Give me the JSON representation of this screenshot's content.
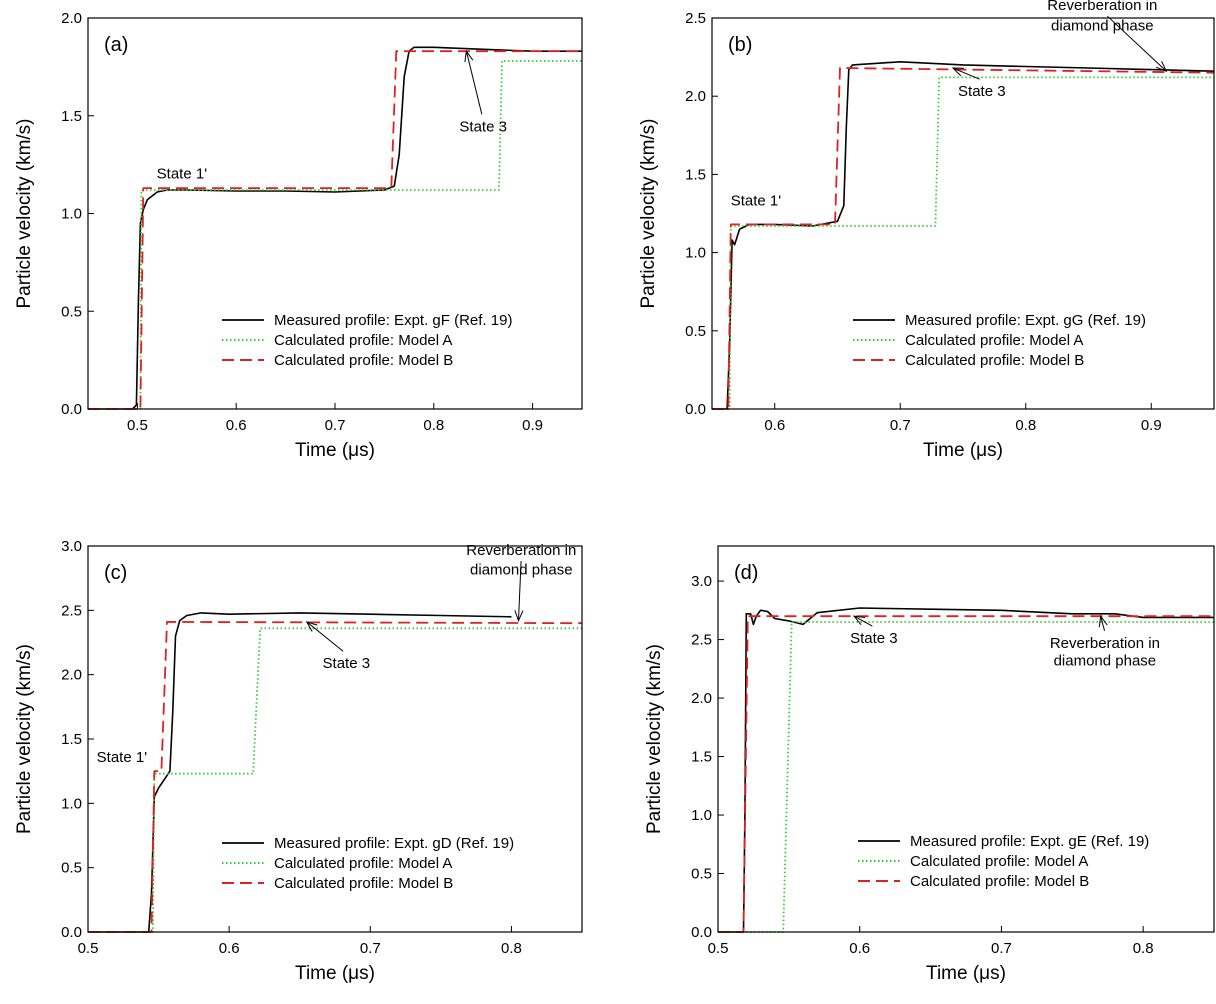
{
  "chart_data": [
    {
      "type": "line",
      "panel_label": "(a)",
      "xlabel": "Time (μs)",
      "ylabel": "Particle velocity (km/s)",
      "xlim": [
        0.45,
        0.95
      ],
      "ylim": [
        0.0,
        2.0
      ],
      "xticks": [
        0.5,
        0.6,
        0.7,
        0.8,
        0.9
      ],
      "yticks": [
        0.0,
        0.5,
        1.0,
        1.5,
        2.0
      ],
      "ytick_labels": [
        "0.0",
        "0.5",
        "1.0",
        "1.5",
        "2.0"
      ],
      "xtick_labels": [
        "0.5",
        "0.6",
        "0.7",
        "0.8",
        "0.9"
      ],
      "grid": false,
      "legend_position": "lower-right",
      "series": [
        {
          "name": "Measured profile:  Expt. gF (Ref. 19)",
          "style": "solid",
          "color": "#000000",
          "x": [
            0.45,
            0.495,
            0.499,
            0.501,
            0.503,
            0.506,
            0.51,
            0.52,
            0.53,
            0.55,
            0.6,
            0.65,
            0.7,
            0.75,
            0.76,
            0.765,
            0.77,
            0.775,
            0.78,
            0.8,
            0.85,
            0.9,
            0.95
          ],
          "y": [
            0.0,
            0.0,
            0.02,
            0.55,
            0.95,
            1.02,
            1.07,
            1.11,
            1.12,
            1.12,
            1.115,
            1.115,
            1.11,
            1.12,
            1.14,
            1.3,
            1.7,
            1.83,
            1.85,
            1.85,
            1.84,
            1.83,
            1.83
          ]
        },
        {
          "name": "Calculated profile:  Model A",
          "style": "dotted",
          "color": "#33cc33",
          "x": [
            0.45,
            0.503,
            0.504,
            0.866,
            0.869,
            0.95
          ],
          "y": [
            0.0,
            0.0,
            1.12,
            1.12,
            1.78,
            1.78
          ]
        },
        {
          "name": "Calculated profile:  Model B",
          "style": "dashed",
          "color": "#dd2222",
          "x": [
            0.45,
            0.503,
            0.506,
            0.757,
            0.762,
            0.95
          ],
          "y": [
            0.0,
            0.0,
            1.13,
            1.13,
            1.83,
            1.83
          ]
        }
      ],
      "annotations": [
        {
          "text": "State 1'",
          "x": 0.545,
          "y": 1.18
        },
        {
          "text": "State 3",
          "x": 0.85,
          "y": 1.42,
          "arrow_to_x": 0.833,
          "arrow_to_y": 1.83
        }
      ]
    },
    {
      "type": "line",
      "panel_label": "(b)",
      "xlabel": "Time (μs)",
      "ylabel": "Particle velocity (km/s)",
      "xlim": [
        0.55,
        0.95
      ],
      "ylim": [
        0.0,
        2.5
      ],
      "xticks": [
        0.6,
        0.7,
        0.8,
        0.9
      ],
      "yticks": [
        0.0,
        0.5,
        1.0,
        1.5,
        2.0,
        2.5
      ],
      "ytick_labels": [
        "0.0",
        "0.5",
        "1.0",
        "1.5",
        "2.0",
        "2.5"
      ],
      "xtick_labels": [
        "0.6",
        "0.7",
        "0.8",
        "0.9"
      ],
      "grid": false,
      "legend_position": "lower-right",
      "series": [
        {
          "name": "Measured profile:  Expt. gG (Ref. 19)",
          "style": "solid",
          "color": "#000000",
          "x": [
            0.55,
            0.562,
            0.564,
            0.566,
            0.568,
            0.572,
            0.58,
            0.6,
            0.63,
            0.65,
            0.655,
            0.657,
            0.659,
            0.662,
            0.68,
            0.7,
            0.75,
            0.8,
            0.85,
            0.9,
            0.95
          ],
          "y": [
            0.0,
            0.0,
            0.4,
            1.08,
            1.05,
            1.15,
            1.18,
            1.18,
            1.17,
            1.2,
            1.3,
            1.8,
            2.17,
            2.2,
            2.21,
            2.22,
            2.2,
            2.19,
            2.18,
            2.17,
            2.16
          ]
        },
        {
          "name": "Calculated profile:  Model A",
          "style": "dotted",
          "color": "#33cc33",
          "x": [
            0.55,
            0.564,
            0.565,
            0.728,
            0.731,
            0.95
          ],
          "y": [
            0.0,
            0.0,
            1.17,
            1.17,
            2.12,
            2.12
          ]
        },
        {
          "name": "Calculated profile:  Model B",
          "style": "dashed",
          "color": "#dd2222",
          "x": [
            0.55,
            0.563,
            0.565,
            0.648,
            0.652,
            0.95
          ],
          "y": [
            0.0,
            0.0,
            1.18,
            1.18,
            2.18,
            2.15
          ]
        }
      ],
      "annotations": [
        {
          "text": "State 1'",
          "x": 0.585,
          "y": 1.3
        },
        {
          "text": "State 3",
          "x": 0.765,
          "y": 2.0,
          "arrow_to_x": 0.742,
          "arrow_to_y": 2.18
        },
        {
          "text": "Reverberation in",
          "x": 0.861,
          "y": 2.55,
          "arrow_to_x": 0.912,
          "arrow_to_y": 2.16
        },
        {
          "text": "diamond phase",
          "x": 0.861,
          "y": 2.42
        }
      ]
    },
    {
      "type": "line",
      "panel_label": "(c)",
      "xlabel": "Time (μs)",
      "ylabel": "Particle velocity (km/s)",
      "xlim": [
        0.5,
        0.85
      ],
      "ylim": [
        0.0,
        3.0
      ],
      "xticks": [
        0.5,
        0.6,
        0.7,
        0.8
      ],
      "yticks": [
        0.0,
        0.5,
        1.0,
        1.5,
        2.0,
        2.5,
        3.0
      ],
      "ytick_labels": [
        "0.0",
        "0.5",
        "1.0",
        "1.5",
        "2.0",
        "2.5",
        "3.0"
      ],
      "xtick_labels": [
        "0.5",
        "0.6",
        "0.7",
        "0.8"
      ],
      "grid": false,
      "legend_position": "lower-right",
      "series": [
        {
          "name": "Measured profile:  Expt. gD (Ref. 19)",
          "style": "solid",
          "color": "#000000",
          "x": [
            0.5,
            0.543,
            0.545,
            0.547,
            0.55,
            0.555,
            0.558,
            0.56,
            0.562,
            0.565,
            0.57,
            0.58,
            0.6,
            0.65,
            0.7,
            0.75,
            0.8
          ],
          "y": [
            0.0,
            0.0,
            0.3,
            1.05,
            1.12,
            1.2,
            1.25,
            1.7,
            2.3,
            2.42,
            2.46,
            2.48,
            2.47,
            2.48,
            2.47,
            2.46,
            2.45
          ]
        },
        {
          "name": "Calculated profile:  Model A",
          "style": "dotted",
          "color": "#33cc33",
          "x": [
            0.5,
            0.546,
            0.547,
            0.617,
            0.622,
            0.85
          ],
          "y": [
            0.0,
            0.0,
            1.23,
            1.23,
            2.36,
            2.36
          ]
        },
        {
          "name": "Calculated profile:  Model B",
          "style": "dashed",
          "color": "#dd2222",
          "x": [
            0.5,
            0.545,
            0.547,
            0.552,
            0.556,
            0.85
          ],
          "y": [
            0.0,
            0.0,
            1.25,
            1.25,
            2.41,
            2.4
          ]
        }
      ],
      "annotations": [
        {
          "text": "State 1'",
          "x": 0.524,
          "y": 1.32
        },
        {
          "text": "State 3",
          "x": 0.683,
          "y": 2.05,
          "arrow_to_x": 0.655,
          "arrow_to_y": 2.41
        },
        {
          "text": "Reverberation in",
          "x": 0.807,
          "y": 2.93,
          "arrow_to_x": 0.805,
          "arrow_to_y": 2.42
        },
        {
          "text": "diamond phase",
          "x": 0.807,
          "y": 2.78
        }
      ]
    },
    {
      "type": "line",
      "panel_label": "(d)",
      "xlabel": "Time (μs)",
      "ylabel": "Particle velocity (km/s)",
      "xlim": [
        0.5,
        0.85
      ],
      "ylim": [
        0.0,
        3.3
      ],
      "xticks": [
        0.5,
        0.6,
        0.7,
        0.8
      ],
      "yticks": [
        0.0,
        0.5,
        1.0,
        1.5,
        2.0,
        2.5,
        3.0
      ],
      "ytick_labels": [
        "0.0",
        "0.5",
        "1.0",
        "1.5",
        "2.0",
        "2.5",
        "3.0"
      ],
      "xtick_labels": [
        "0.5",
        "0.6",
        "0.7",
        "0.8"
      ],
      "grid": false,
      "legend_position": "lower-right",
      "series": [
        {
          "name": "Measured profile:  Expt. gE (Ref. 19)",
          "style": "solid",
          "color": "#000000",
          "x": [
            0.5,
            0.518,
            0.519,
            0.52,
            0.523,
            0.525,
            0.527,
            0.53,
            0.535,
            0.54,
            0.55,
            0.56,
            0.57,
            0.6,
            0.65,
            0.7,
            0.75,
            0.78,
            0.8,
            0.85
          ],
          "y": [
            0.0,
            0.0,
            1.0,
            2.72,
            2.72,
            2.63,
            2.7,
            2.75,
            2.74,
            2.68,
            2.66,
            2.63,
            2.73,
            2.77,
            2.76,
            2.75,
            2.72,
            2.72,
            2.69,
            2.69
          ]
        },
        {
          "name": "Calculated profile:  Model A",
          "style": "dotted",
          "color": "#33cc33",
          "x": [
            0.5,
            0.546,
            0.552,
            0.85
          ],
          "y": [
            0.0,
            0.0,
            2.65,
            2.65
          ]
        },
        {
          "name": "Calculated profile:  Model B",
          "style": "dashed",
          "color": "#dd2222",
          "x": [
            0.5,
            0.518,
            0.521,
            0.85
          ],
          "y": [
            0.0,
            0.0,
            2.7,
            2.7
          ]
        }
      ],
      "annotations": [
        {
          "text": "State 3",
          "x": 0.61,
          "y": 2.47,
          "arrow_to_x": 0.596,
          "arrow_to_y": 2.7
        },
        {
          "text": "Reverberation in",
          "x": 0.773,
          "y": 2.43,
          "arrow_to_x": 0.77,
          "arrow_to_y": 2.7
        },
        {
          "text": "diamond phase",
          "x": 0.773,
          "y": 2.28
        }
      ]
    }
  ]
}
